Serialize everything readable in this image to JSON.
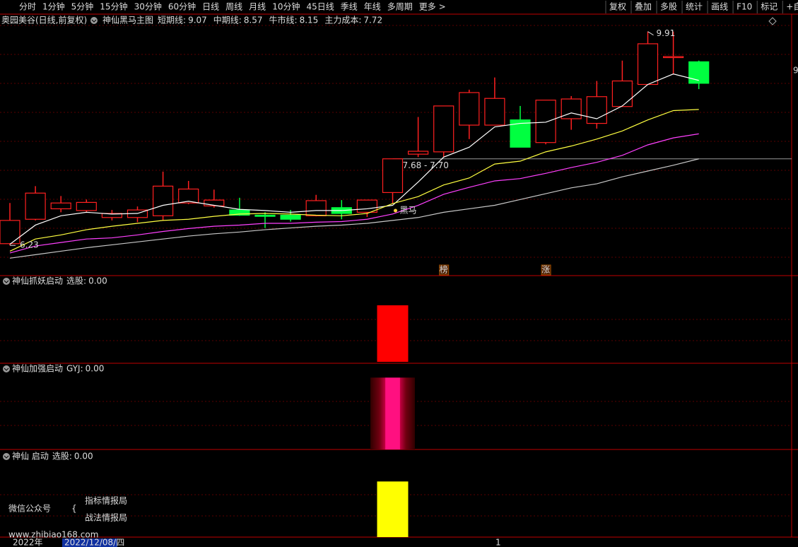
{
  "toolbar": {
    "tabs": [
      "分时",
      "1分钟",
      "5分钟",
      "15分钟",
      "30分钟",
      "60分钟",
      "日线",
      "周线",
      "月线",
      "10分钟",
      "45日线",
      "季线",
      "年线",
      "多周期",
      "更多 >"
    ],
    "active_tab": 6,
    "tools": [
      "复权",
      "叠加",
      "多股",
      "统计",
      "画线",
      "F10",
      "标记",
      "+自选"
    ]
  },
  "header": {
    "stock": "奥园美谷(日线,前复权)",
    "indicator": "神仙黑马主图"
  },
  "chart_data": {
    "type": "candlestick",
    "ylim": [
      5.71,
      10.21
    ],
    "up_color": "#ff2020",
    "down_color": "#00ff40",
    "candles": [
      {
        "o": 6.26,
        "h": 6.96,
        "l": 6.23,
        "c": 6.66
      },
      {
        "o": 6.68,
        "h": 7.25,
        "l": 6.66,
        "c": 7.13
      },
      {
        "o": 6.86,
        "h": 7.08,
        "l": 6.8,
        "c": 6.96
      },
      {
        "o": 6.83,
        "h": 7.02,
        "l": 6.8,
        "c": 6.97
      },
      {
        "o": 6.71,
        "h": 6.84,
        "l": 6.66,
        "c": 6.78
      },
      {
        "o": 6.71,
        "h": 6.9,
        "l": 6.63,
        "c": 6.84
      },
      {
        "o": 6.74,
        "h": 7.5,
        "l": 6.66,
        "c": 7.25
      },
      {
        "o": 6.96,
        "h": 7.34,
        "l": 6.94,
        "c": 7.2
      },
      {
        "o": 6.91,
        "h": 7.19,
        "l": 6.88,
        "c": 7.01
      },
      {
        "o": 6.84,
        "h": 7.05,
        "l": 6.74,
        "c": 6.75
      },
      {
        "o": 6.75,
        "h": 6.8,
        "l": 6.53,
        "c": 6.73
      },
      {
        "o": 6.75,
        "h": 6.84,
        "l": 6.64,
        "c": 6.68
      },
      {
        "o": 6.74,
        "h": 7.1,
        "l": 6.73,
        "c": 7.0
      },
      {
        "o": 6.88,
        "h": 7.01,
        "l": 6.68,
        "c": 6.78
      },
      {
        "o": 6.8,
        "h": 7.01,
        "l": 6.72,
        "c": 7.01
      },
      {
        "o": 7.14,
        "h": 7.72,
        "l": 6.95,
        "c": 7.72
      },
      {
        "o": 7.8,
        "h": 8.44,
        "l": 7.75,
        "c": 7.85
      },
      {
        "o": 7.84,
        "h": 8.63,
        "l": 7.75,
        "c": 8.63
      },
      {
        "o": 8.3,
        "h": 8.91,
        "l": 8.06,
        "c": 8.86
      },
      {
        "o": 8.3,
        "h": 9.12,
        "l": 8.3,
        "c": 8.76
      },
      {
        "o": 8.39,
        "h": 8.63,
        "l": 7.92,
        "c": 7.92
      },
      {
        "o": 8.0,
        "h": 8.73,
        "l": 7.97,
        "c": 8.73
      },
      {
        "o": 8.41,
        "h": 8.8,
        "l": 8.22,
        "c": 8.75
      },
      {
        "o": 8.33,
        "h": 9.06,
        "l": 8.24,
        "c": 8.79
      },
      {
        "o": 8.62,
        "h": 9.41,
        "l": 8.62,
        "c": 9.06
      },
      {
        "o": 9.0,
        "h": 9.91,
        "l": 9.0,
        "c": 9.7
      },
      {
        "o": 9.48,
        "h": 9.91,
        "l": 9.17,
        "c": 9.48
      },
      {
        "o": 9.39,
        "h": 9.41,
        "l": 8.92,
        "c": 9.02
      }
    ],
    "series": [
      {
        "name": "短期线:",
        "color": "#ffffff",
        "values": [
          6.25,
          6.58,
          6.74,
          6.8,
          6.77,
          6.78,
          6.92,
          6.99,
          6.92,
          6.85,
          6.83,
          6.8,
          6.83,
          6.83,
          6.86,
          6.92,
          7.32,
          7.75,
          7.92,
          8.27,
          8.33,
          8.35,
          8.51,
          8.41,
          8.63,
          9.0,
          9.18,
          9.07
        ]
      },
      {
        "name": "中期线:",
        "color": "#ffff40",
        "values": [
          6.13,
          6.34,
          6.41,
          6.5,
          6.56,
          6.61,
          6.66,
          6.68,
          6.73,
          6.77,
          6.78,
          6.77,
          6.75,
          6.74,
          6.78,
          6.95,
          7.07,
          7.27,
          7.39,
          7.63,
          7.68,
          7.84,
          7.94,
          8.06,
          8.2,
          8.39,
          8.55,
          8.57
        ]
      },
      {
        "name": "牛市线:",
        "color": "#ff40ff",
        "values": [
          6.1,
          6.22,
          6.28,
          6.34,
          6.36,
          6.41,
          6.47,
          6.52,
          6.56,
          6.58,
          6.61,
          6.61,
          6.63,
          6.64,
          6.68,
          6.77,
          6.92,
          7.11,
          7.23,
          7.34,
          7.38,
          7.47,
          7.57,
          7.66,
          7.78,
          7.96,
          8.08,
          8.15
        ]
      },
      {
        "name": "主力成本:",
        "color": "#c8c8c8",
        "values": [
          6.01,
          6.07,
          6.13,
          6.19,
          6.24,
          6.29,
          6.34,
          6.39,
          6.43,
          6.46,
          6.5,
          6.53,
          6.56,
          6.58,
          6.61,
          6.66,
          6.71,
          6.8,
          6.86,
          6.92,
          7.02,
          7.12,
          7.22,
          7.29,
          7.41,
          7.51,
          7.61,
          7.72
        ]
      }
    ],
    "cost_zone_label": "7.68 - 7.70",
    "annotations": [
      {
        "text": "黑马",
        "index": 15
      },
      {
        "text": "榜",
        "index": 17
      },
      {
        "text": "涨",
        "index": 21
      }
    ],
    "edge_label": "9"
  },
  "indicators": [
    {
      "title": "神仙抓妖启动",
      "label": "选股:",
      "readout": "0.00",
      "color": "#ff0000",
      "ylim": [
        0,
        1.5
      ],
      "values": [
        0,
        0,
        0,
        0,
        0,
        0,
        0,
        0,
        0,
        0,
        0,
        0,
        0,
        0,
        0,
        1,
        0,
        0,
        0,
        0,
        0,
        0,
        0,
        0,
        0,
        0,
        0,
        0
      ]
    },
    {
      "title": "神仙加强启动",
      "label": "GYJ:",
      "readout": "0.00",
      "color": "#ff0080",
      "ylim": [
        0,
        1.18
      ],
      "values": [
        0,
        0,
        0,
        0,
        0,
        0,
        0,
        0,
        0,
        0,
        0,
        0,
        0,
        0,
        0,
        1,
        0,
        0,
        0,
        0,
        0,
        0,
        0,
        0,
        0,
        0,
        0,
        0
      ]
    },
    {
      "title": "神仙 启动",
      "label": "选股:",
      "readout": "0.00",
      "color": "#ffff00",
      "ylim": [
        0,
        1.55
      ],
      "values": [
        0,
        0,
        0,
        0,
        0,
        0,
        0,
        0,
        0,
        0,
        0,
        0,
        0,
        0,
        0,
        1,
        0,
        0,
        0,
        0,
        0,
        0,
        0,
        0,
        0,
        0,
        0,
        0
      ]
    }
  ],
  "watermark": {
    "account": "微信公众号",
    "names": [
      "指标情报局",
      "战法情报局"
    ],
    "url": "www.zhibiao168.com"
  },
  "x_axis": {
    "year": "2022年",
    "cursor_date": "2022/12/08/四",
    "mark": "1"
  }
}
